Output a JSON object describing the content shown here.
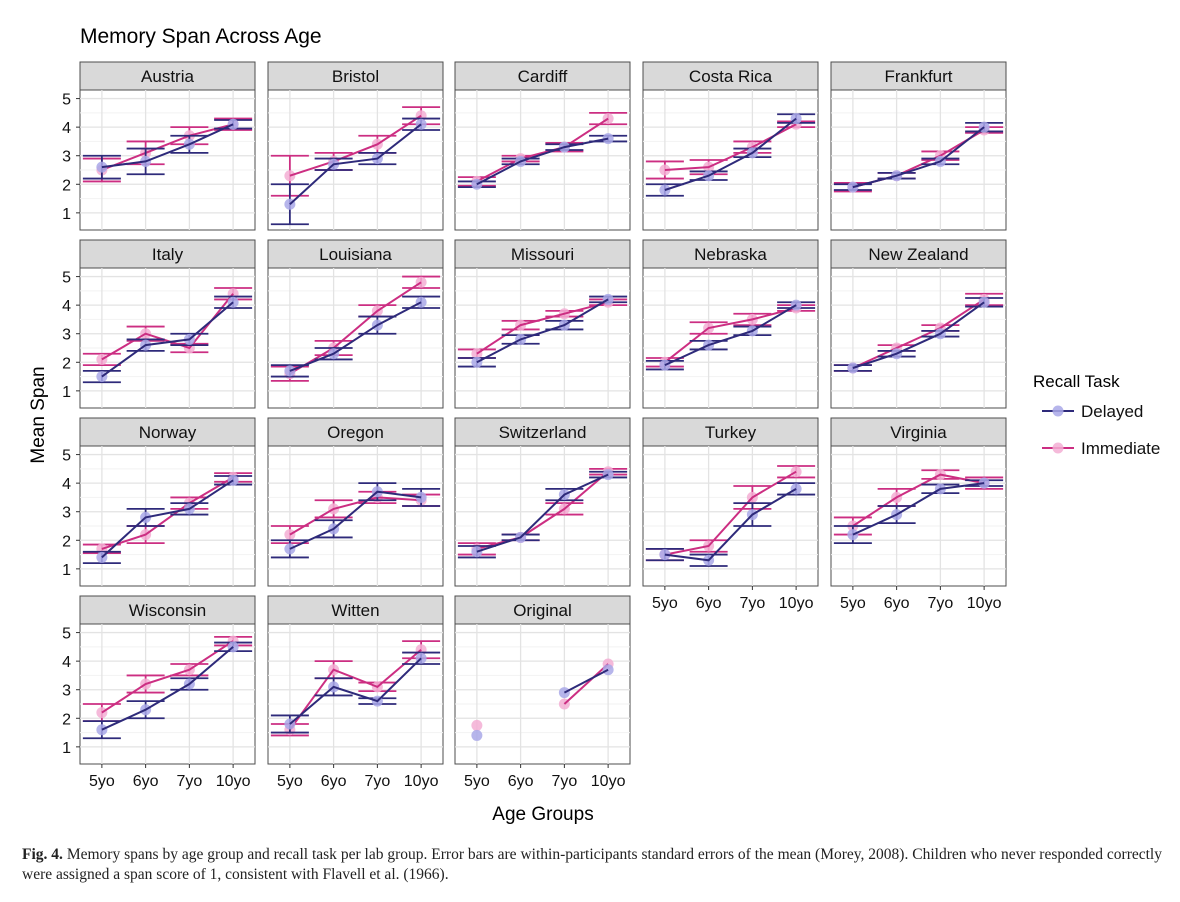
{
  "chart_data": {
    "type": "line",
    "title": "Memory Span Across Age",
    "xlabel": "Age Groups",
    "ylabel": "Mean Span",
    "categories": [
      "5yo",
      "6yo",
      "7yo",
      "10yo"
    ],
    "y_ticks": [
      1,
      2,
      3,
      4,
      5
    ],
    "ylim": [
      0.4,
      5.3
    ],
    "grid": true,
    "legend": {
      "title": "Recall Task",
      "position": "right",
      "entries": [
        {
          "name": "Delayed",
          "color": "#2e2a7a"
        },
        {
          "name": "Immediate",
          "color": "#cc2e82"
        }
      ]
    },
    "panels": [
      {
        "name": "Austria",
        "delayed": [
          2.6,
          2.8,
          3.4,
          4.1
        ],
        "delayed_err": [
          0.4,
          0.45,
          0.3,
          0.15
        ],
        "immediate": [
          2.5,
          3.1,
          3.7,
          4.1
        ],
        "immediate_err": [
          0.4,
          0.4,
          0.3,
          0.2
        ]
      },
      {
        "name": "Bristol",
        "delayed": [
          1.3,
          2.7,
          2.9,
          4.1
        ],
        "delayed_err": [
          0.7,
          0.2,
          0.2,
          0.2
        ],
        "immediate": [
          2.3,
          2.8,
          3.4,
          4.4
        ],
        "immediate_err": [
          0.7,
          0.3,
          0.3,
          0.3
        ]
      },
      {
        "name": "Cardiff",
        "delayed": [
          2.0,
          2.8,
          3.3,
          3.6
        ],
        "delayed_err": [
          0.1,
          0.1,
          0.1,
          0.1
        ],
        "immediate": [
          2.1,
          2.9,
          3.3,
          4.3
        ],
        "immediate_err": [
          0.15,
          0.1,
          0.15,
          0.2
        ]
      },
      {
        "name": "Costa Rica",
        "delayed": [
          1.8,
          2.3,
          3.1,
          4.3
        ],
        "delayed_err": [
          0.2,
          0.15,
          0.15,
          0.15
        ],
        "immediate": [
          2.5,
          2.6,
          3.3,
          4.1
        ],
        "immediate_err": [
          0.3,
          0.25,
          0.2,
          0.1
        ]
      },
      {
        "name": "Frankfurt",
        "delayed": [
          1.9,
          2.3,
          2.8,
          4.0
        ],
        "delayed_err": [
          0.1,
          0.1,
          0.1,
          0.15
        ],
        "immediate": [
          1.9,
          2.3,
          3.0,
          3.9
        ],
        "immediate_err": [
          0.15,
          0.1,
          0.15,
          0.1
        ]
      },
      {
        "name": "Italy",
        "delayed": [
          1.5,
          2.6,
          2.8,
          4.1
        ],
        "delayed_err": [
          0.2,
          0.2,
          0.2,
          0.2
        ],
        "immediate": [
          2.1,
          3.0,
          2.5,
          4.4
        ],
        "immediate_err": [
          0.2,
          0.25,
          0.15,
          0.2
        ]
      },
      {
        "name": "Louisiana",
        "delayed": [
          1.7,
          2.3,
          3.3,
          4.1
        ],
        "delayed_err": [
          0.2,
          0.2,
          0.3,
          0.2
        ],
        "immediate": [
          1.6,
          2.5,
          3.8,
          4.8
        ],
        "immediate_err": [
          0.25,
          0.25,
          0.2,
          0.2
        ]
      },
      {
        "name": "Missouri",
        "delayed": [
          2.0,
          2.8,
          3.3,
          4.2
        ],
        "delayed_err": [
          0.15,
          0.15,
          0.15,
          0.1
        ],
        "immediate": [
          2.3,
          3.3,
          3.7,
          4.1
        ],
        "immediate_err": [
          0.15,
          0.15,
          0.1,
          0.1
        ]
      },
      {
        "name": "Nebraska",
        "delayed": [
          1.9,
          2.6,
          3.1,
          4.0
        ],
        "delayed_err": [
          0.15,
          0.15,
          0.15,
          0.1
        ],
        "immediate": [
          2.0,
          3.2,
          3.5,
          3.9
        ],
        "immediate_err": [
          0.15,
          0.2,
          0.2,
          0.1
        ]
      },
      {
        "name": "New Zealand",
        "delayed": [
          1.8,
          2.3,
          3.0,
          4.1
        ],
        "delayed_err": [
          0.1,
          0.1,
          0.1,
          0.15
        ],
        "immediate": [
          1.8,
          2.5,
          3.2,
          4.2
        ],
        "immediate_err": [
          0.1,
          0.1,
          0.1,
          0.2
        ]
      },
      {
        "name": "Norway",
        "delayed": [
          1.4,
          2.8,
          3.1,
          4.1
        ],
        "delayed_err": [
          0.2,
          0.3,
          0.2,
          0.15
        ],
        "immediate": [
          1.7,
          2.2,
          3.3,
          4.2
        ],
        "immediate_err": [
          0.15,
          0.3,
          0.2,
          0.15
        ]
      },
      {
        "name": "Oregon",
        "delayed": [
          1.7,
          2.4,
          3.7,
          3.5
        ],
        "delayed_err": [
          0.3,
          0.3,
          0.3,
          0.3
        ],
        "immediate": [
          2.2,
          3.1,
          3.5,
          3.4
        ],
        "immediate_err": [
          0.3,
          0.3,
          0.2,
          0.2
        ]
      },
      {
        "name": "Switzerland",
        "delayed": [
          1.6,
          2.1,
          3.6,
          4.3
        ],
        "delayed_err": [
          0.2,
          0.1,
          0.2,
          0.1
        ],
        "immediate": [
          1.7,
          2.1,
          3.1,
          4.4
        ],
        "immediate_err": [
          0.2,
          0.1,
          0.2,
          0.1
        ]
      },
      {
        "name": "Turkey",
        "delayed": [
          1.5,
          1.3,
          2.9,
          3.8
        ],
        "delayed_err": [
          0.2,
          0.2,
          0.4,
          0.2
        ],
        "immediate": [
          1.5,
          1.8,
          3.5,
          4.4
        ],
        "immediate_err": [
          0.2,
          0.2,
          0.4,
          0.2
        ]
      },
      {
        "name": "Virginia",
        "delayed": [
          2.2,
          2.9,
          3.8,
          4.0
        ],
        "delayed_err": [
          0.3,
          0.3,
          0.15,
          0.1
        ],
        "immediate": [
          2.5,
          3.5,
          4.3,
          4.0
        ],
        "immediate_err": [
          0.3,
          0.3,
          0.15,
          0.2
        ]
      },
      {
        "name": "Wisconsin",
        "delayed": [
          1.6,
          2.3,
          3.2,
          4.5
        ],
        "delayed_err": [
          0.3,
          0.3,
          0.2,
          0.15
        ],
        "immediate": [
          2.2,
          3.2,
          3.7,
          4.7
        ],
        "immediate_err": [
          0.3,
          0.3,
          0.2,
          0.15
        ]
      },
      {
        "name": "Witten",
        "delayed": [
          1.8,
          3.1,
          2.6,
          4.1
        ],
        "delayed_err": [
          0.3,
          0.3,
          0.1,
          0.2
        ],
        "immediate": [
          1.6,
          3.7,
          3.1,
          4.4
        ],
        "immediate_err": [
          0.2,
          0.3,
          0.15,
          0.3
        ]
      },
      {
        "name": "Original",
        "delayed": [
          1.4,
          null,
          2.9,
          3.7
        ],
        "delayed_err": null,
        "immediate": [
          1.75,
          null,
          2.5,
          3.9
        ],
        "immediate_err": null
      }
    ]
  },
  "caption": {
    "label": "Fig. 4.",
    "text": "Memory spans by age group and recall task per lab group. Error bars are within-participants standard errors of the mean (Morey, 2008). Children who never responded correctly were assigned a span score of 1, consistent with Flavell et al. (1966)."
  }
}
